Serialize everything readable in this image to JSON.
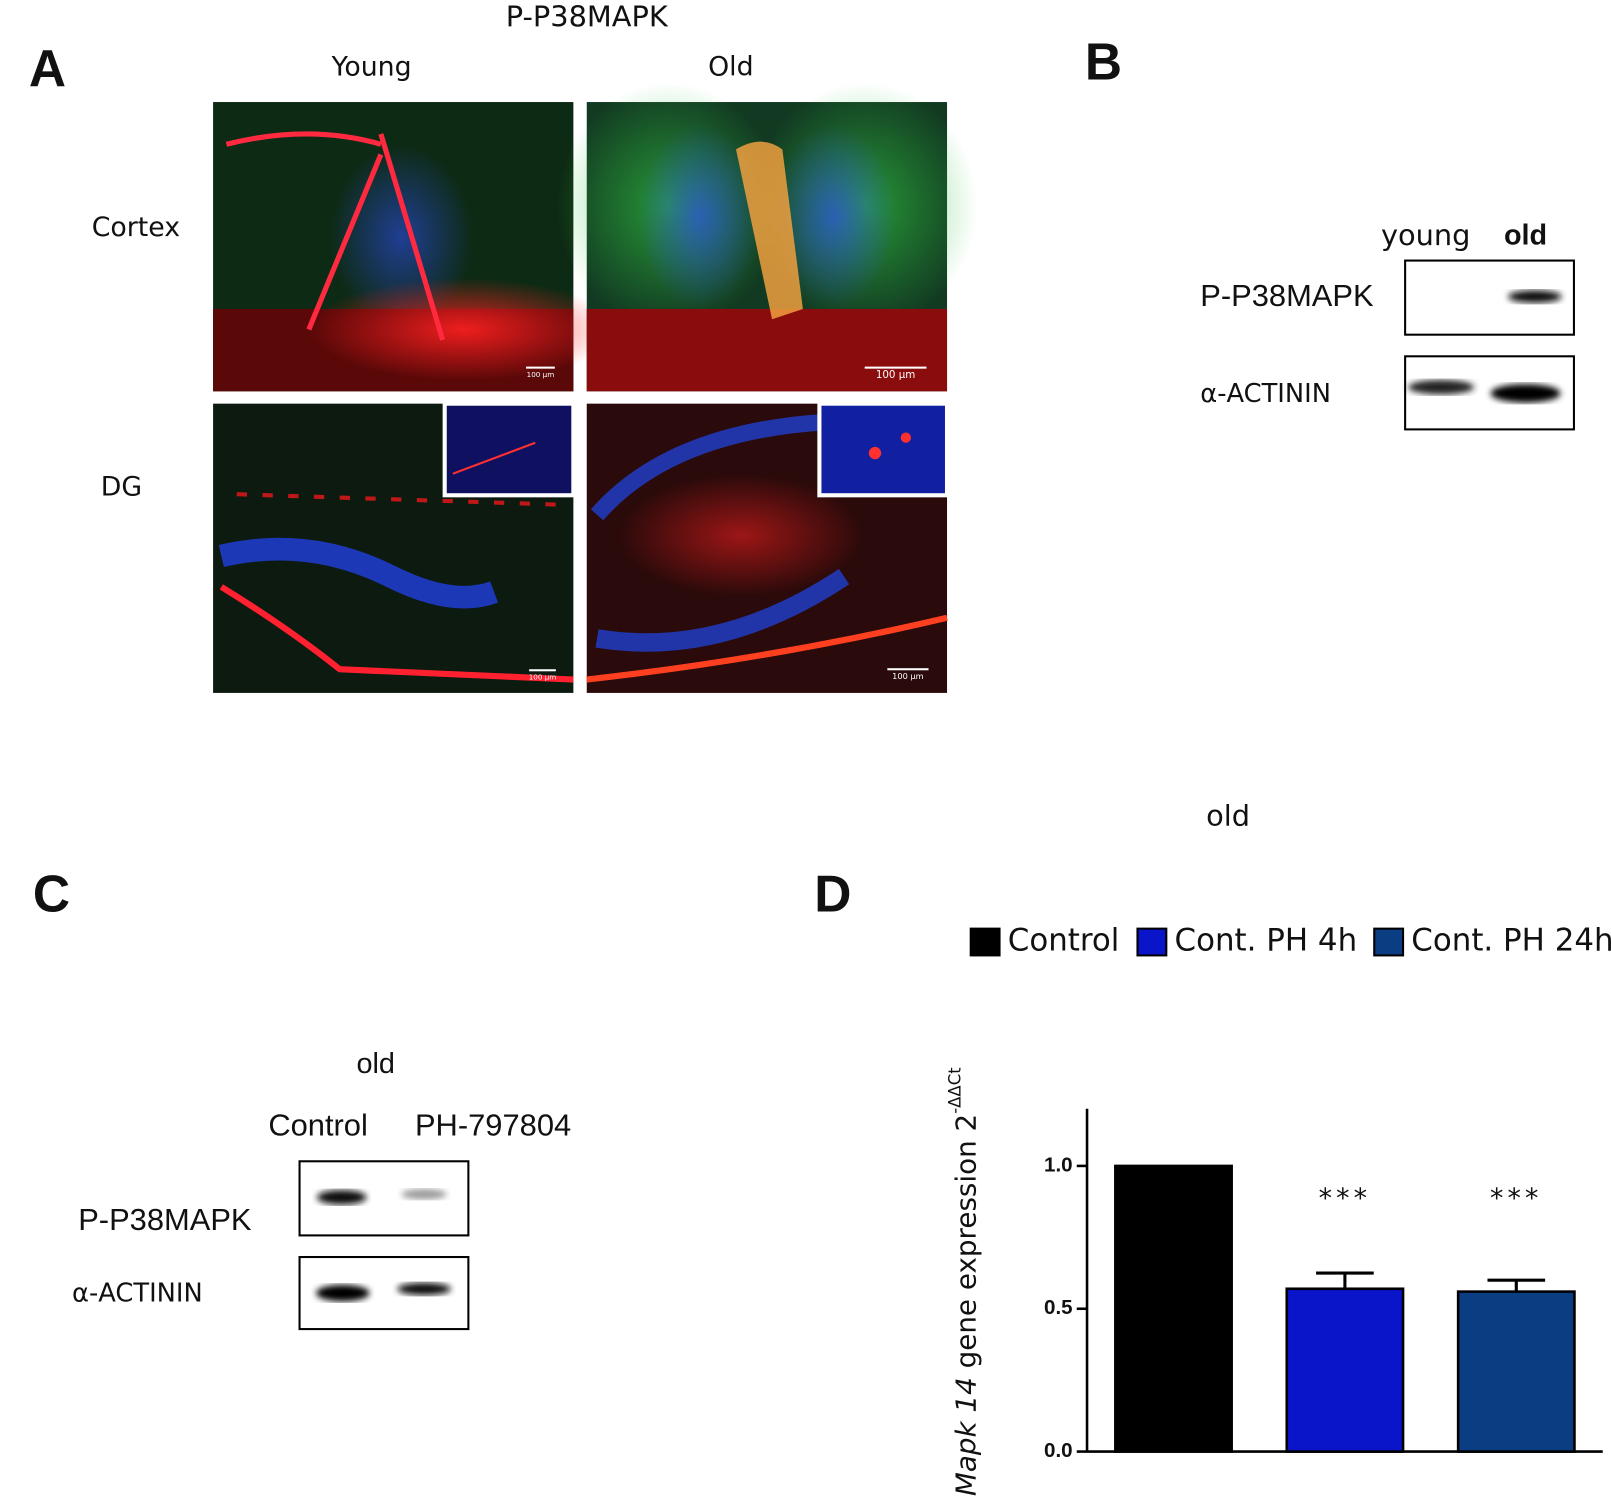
{
  "panel_a": {
    "letter": "A",
    "title": "P-P38MAPK",
    "columns": [
      "Young",
      "Old"
    ],
    "rows": [
      "Cortex",
      "DG"
    ],
    "scale_bars": [
      "100 µm",
      "100 µm",
      "100 µm",
      "100 µm"
    ]
  },
  "panel_b": {
    "letter": "B",
    "lanes": [
      "young",
      "old"
    ],
    "blots": [
      "P-P38MAPK",
      "α-ACTININ"
    ],
    "note": "old"
  },
  "panel_c": {
    "letter": "C",
    "group": "old",
    "lanes": [
      "Control",
      "PH-797804"
    ],
    "blots": [
      "P-P38MAPK",
      "α-ACTININ"
    ]
  },
  "chart_data": {
    "type": "bar",
    "letter": "D",
    "ylabel": {
      "italic": "Mapk 14",
      "text": " gene expression 2",
      "superscript": "-ΔΔCt"
    },
    "ylim": [
      0,
      1.2
    ],
    "yticks": [
      {
        "value": 0,
        "label": "0.0"
      },
      {
        "value": 0.5,
        "label": "0.5"
      },
      {
        "value": 1,
        "label": "1.0"
      }
    ],
    "legend": "top",
    "series": [
      {
        "name": "Control",
        "color": "#000000",
        "values": [
          1.0
        ]
      },
      {
        "name": "Cont. PH 4h",
        "color": "#0a14c8",
        "values": [
          0.57
        ],
        "errors": [
          0.055
        ],
        "annotation": "***"
      },
      {
        "name": "Cont. PH 24h",
        "color": "#0b3d82",
        "values": [
          0.56
        ],
        "errors": [
          0.04
        ],
        "annotation": "***"
      }
    ]
  }
}
